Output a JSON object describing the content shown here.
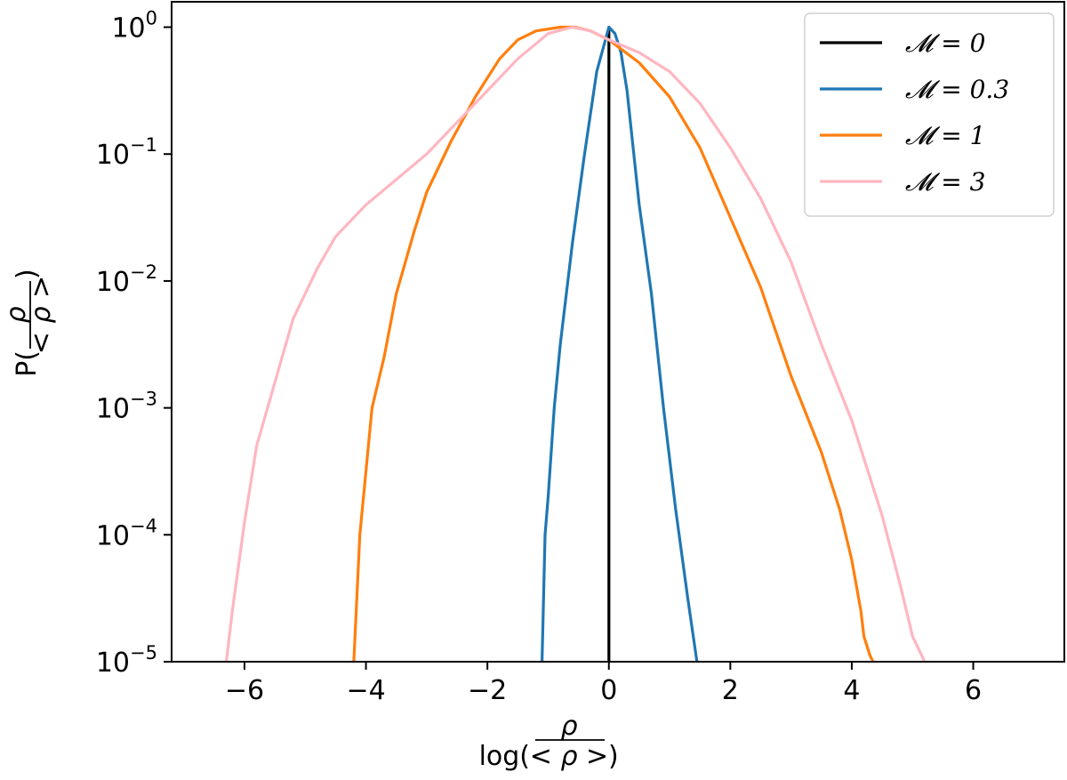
{
  "chart_data": {
    "type": "line",
    "title": "",
    "xlabel": "log(ρ/<ρ>)",
    "ylabel": "P(ρ/<ρ>)",
    "xlim": [
      -7.2,
      7.5
    ],
    "ylim_log10": [
      -5,
      0.2
    ],
    "yscale": "log",
    "grid": false,
    "legend_position": "top-right",
    "x_ticks": [
      -6,
      -4,
      -2,
      0,
      2,
      4,
      6
    ],
    "x_tick_labels": [
      "−6",
      "−4",
      "−2",
      "0",
      "2",
      "4",
      "6"
    ],
    "y_ticks_log10": [
      0,
      -1,
      -2,
      -3,
      -4,
      -5
    ],
    "y_tick_bases": [
      "10",
      "10",
      "10",
      "10",
      "10",
      "10"
    ],
    "y_tick_exponents": [
      "0",
      "−1",
      "−2",
      "−3",
      "−4",
      "−5"
    ],
    "series": [
      {
        "name": "𝓜 = 0",
        "color": "#000000",
        "x": [
          0.0,
          0.0
        ],
        "y_log10": [
          -5,
          0
        ]
      },
      {
        "name": "𝓜 = 0.3",
        "color": "#1f77b4",
        "x": [
          -1.1,
          -1.05,
          -1.0,
          -0.9,
          -0.8,
          -0.6,
          -0.4,
          -0.2,
          0.0,
          0.1,
          0.2,
          0.3,
          0.5,
          0.7,
          0.9,
          1.1,
          1.3,
          1.45
        ],
        "y_log10": [
          -5.0,
          -4.0,
          -3.7,
          -3.0,
          -2.5,
          -1.7,
          -1.0,
          -0.35,
          0.0,
          -0.05,
          -0.2,
          -0.5,
          -1.4,
          -2.1,
          -3.0,
          -3.8,
          -4.5,
          -5.0
        ]
      },
      {
        "name": "𝓜 = 1",
        "color": "#ff7f0e",
        "x": [
          -4.2,
          -4.1,
          -3.9,
          -3.7,
          -3.5,
          -3.2,
          -3.0,
          -2.6,
          -2.2,
          -1.8,
          -1.5,
          -1.2,
          -0.8,
          -0.55,
          -0.3,
          0.0,
          0.5,
          1.0,
          1.5,
          2.0,
          2.5,
          3.0,
          3.5,
          3.8,
          4.0,
          4.15,
          4.2,
          4.3,
          4.35
        ],
        "y_log10": [
          -5.0,
          -4.0,
          -3.0,
          -2.6,
          -2.1,
          -1.6,
          -1.3,
          -0.9,
          -0.55,
          -0.25,
          -0.1,
          -0.03,
          0.0,
          0.0,
          -0.03,
          -0.1,
          -0.28,
          -0.55,
          -0.95,
          -1.5,
          -2.05,
          -2.75,
          -3.35,
          -3.8,
          -4.2,
          -4.6,
          -4.8,
          -4.95,
          -5.0
        ]
      },
      {
        "name": "𝓜 = 3",
        "color": "#ffb6c1",
        "x": [
          -6.3,
          -6.2,
          -6.0,
          -5.8,
          -5.5,
          -5.2,
          -4.8,
          -4.5,
          -4.0,
          -3.5,
          -3.0,
          -2.5,
          -2.0,
          -1.5,
          -1.0,
          -0.6,
          -0.3,
          0.0,
          0.5,
          1.0,
          1.5,
          2.0,
          2.5,
          3.0,
          3.5,
          4.0,
          4.5,
          4.8,
          5.0,
          5.2
        ],
        "y_log10": [
          -5.0,
          -4.6,
          -3.9,
          -3.3,
          -2.8,
          -2.3,
          -1.9,
          -1.65,
          -1.4,
          -1.2,
          -1.0,
          -0.75,
          -0.5,
          -0.25,
          -0.05,
          0.0,
          -0.03,
          -0.1,
          -0.2,
          -0.35,
          -0.6,
          -0.95,
          -1.35,
          -1.85,
          -2.5,
          -3.1,
          -3.85,
          -4.4,
          -4.8,
          -5.0
        ]
      }
    ]
  }
}
